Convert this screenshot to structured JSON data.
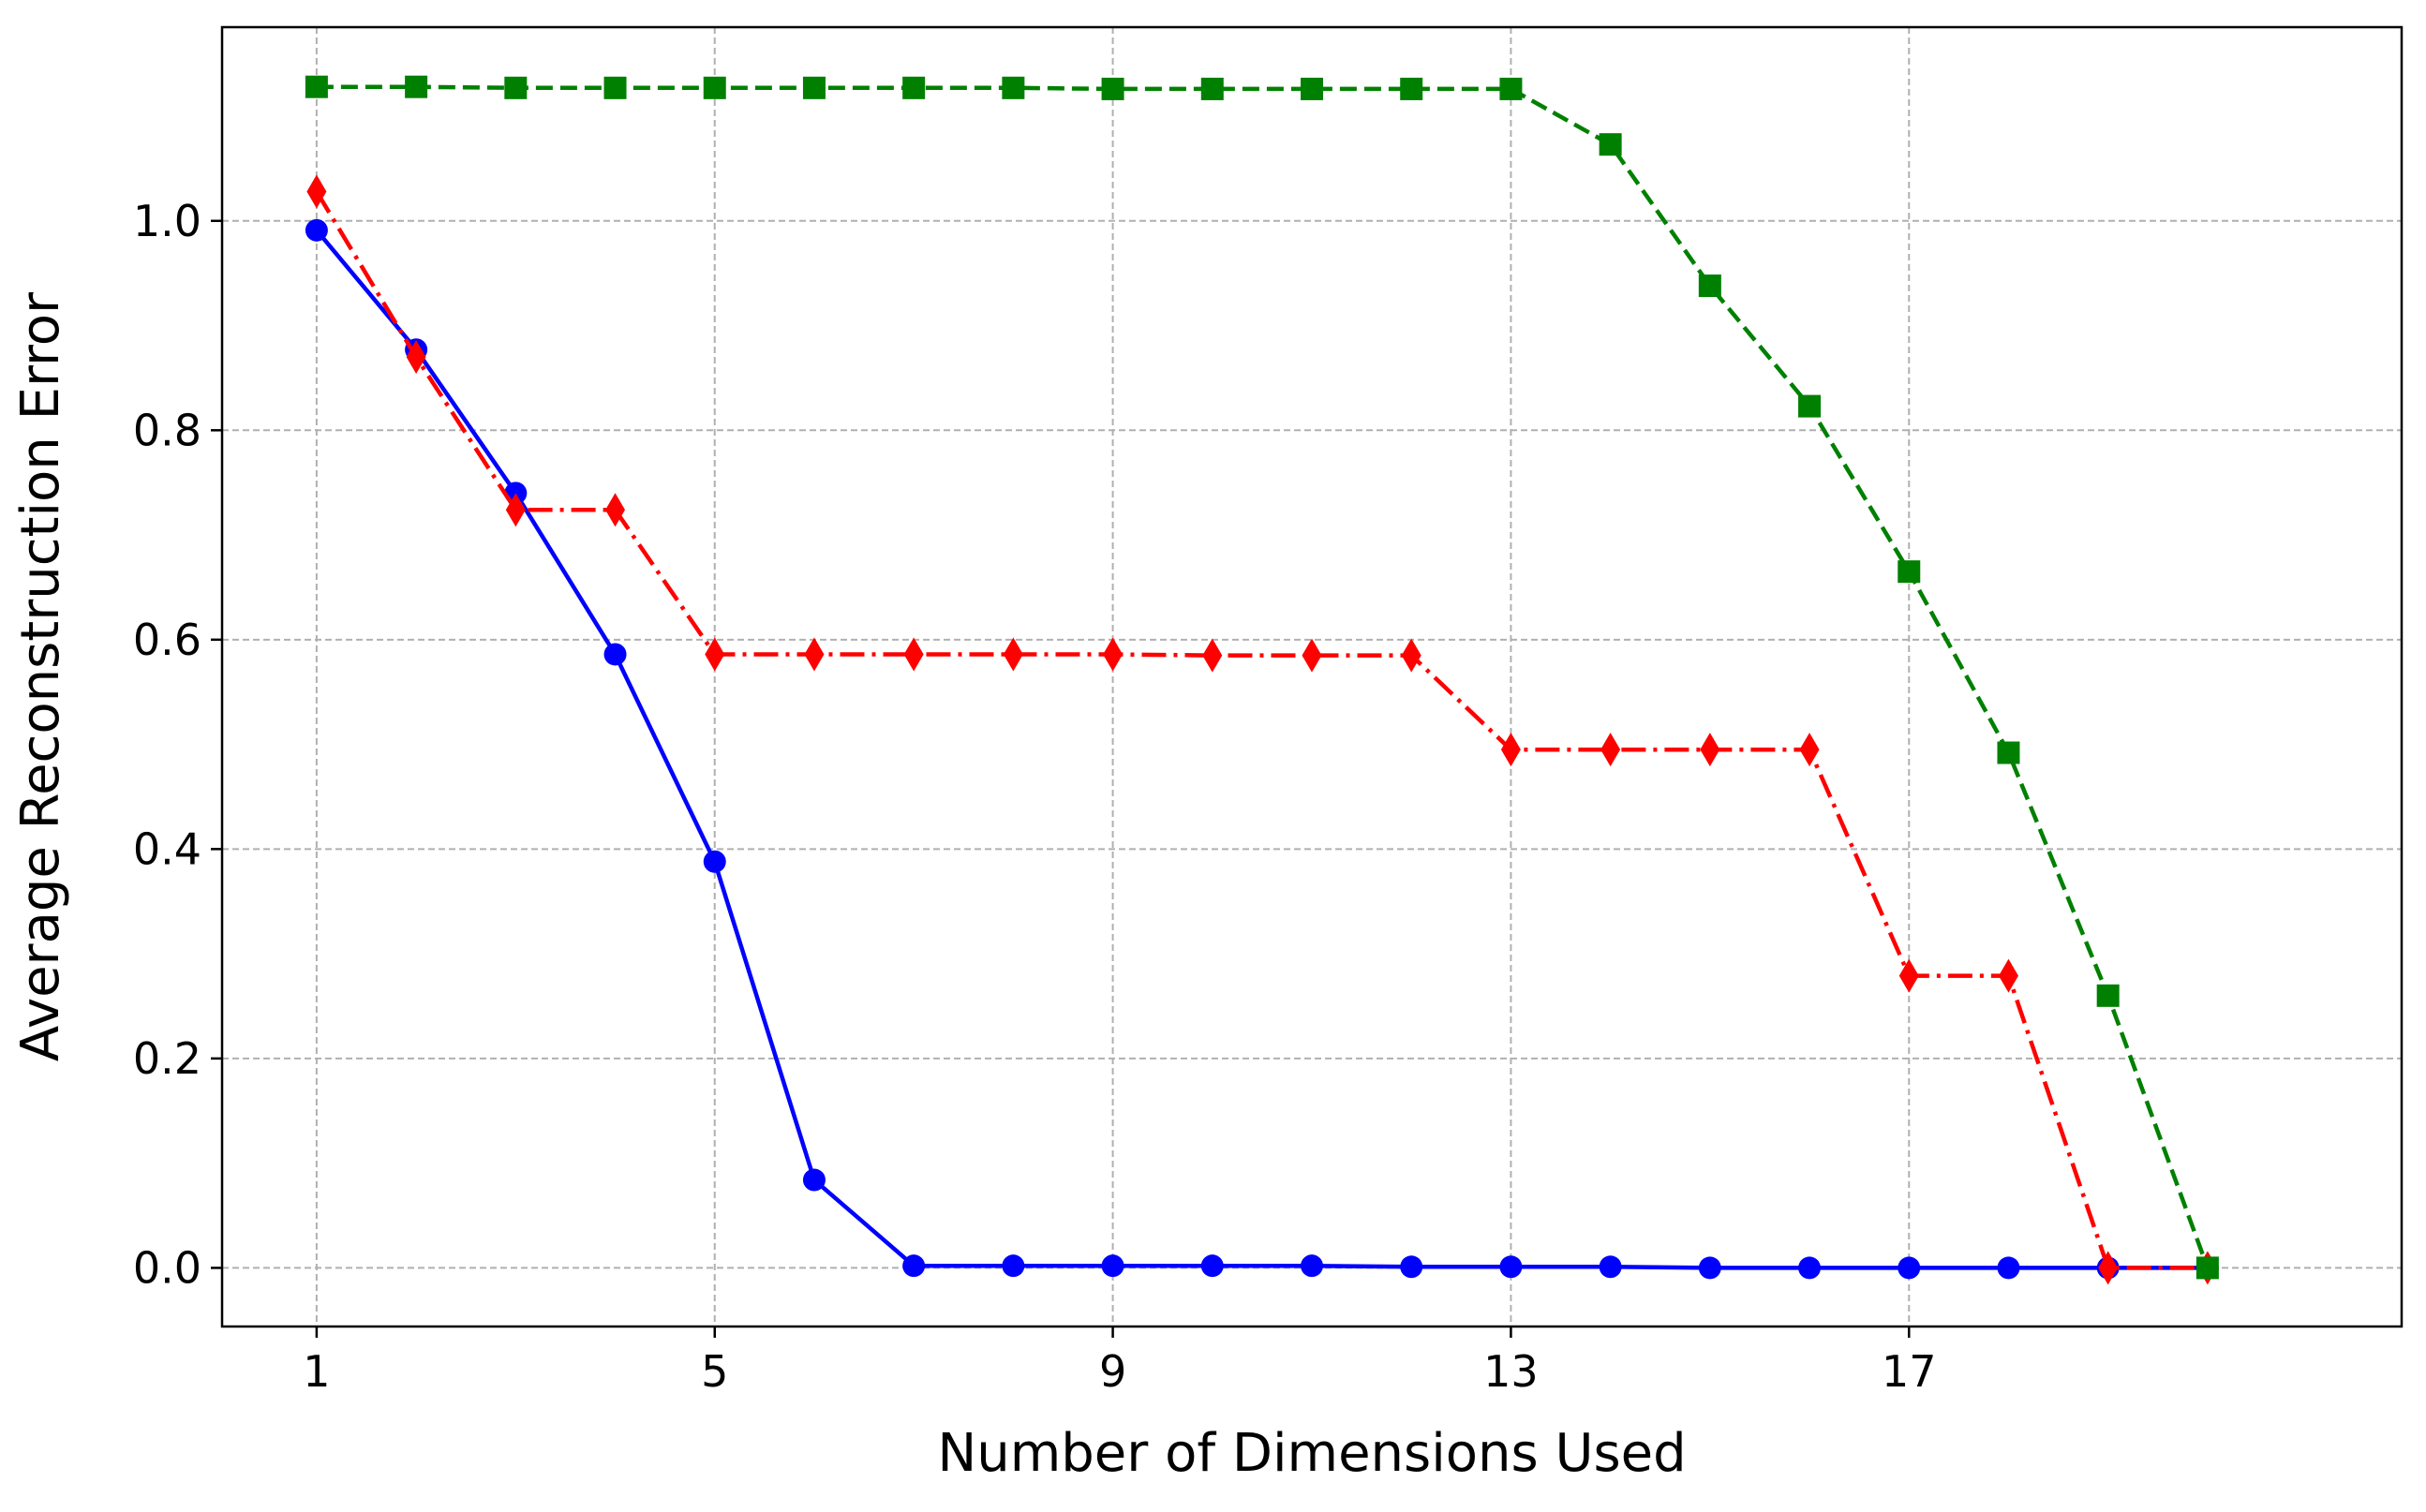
{
  "chart_data": {
    "type": "line",
    "title": "",
    "xlabel": "Number of Dimensions Used",
    "ylabel": "Average Reconstruction Error",
    "xlim": [
      0.05,
      21.95
    ],
    "ylim": [
      -0.056,
      1.185
    ],
    "xticks": [
      1,
      5,
      9,
      13,
      17
    ],
    "yticks": [
      0.0,
      0.2,
      0.4,
      0.6,
      0.8,
      1.0
    ],
    "xtick_labels": [
      "1",
      "5",
      "9",
      "13",
      "17"
    ],
    "ytick_labels": [
      "0.0",
      "0.2",
      "0.4",
      "0.6",
      "0.8",
      "1.0"
    ],
    "grid": true,
    "legend": "none",
    "x": [
      1,
      2,
      3,
      4,
      5,
      6,
      7,
      8,
      9,
      10,
      11,
      12,
      13,
      14,
      15,
      16,
      17,
      18,
      19,
      20
    ],
    "series": [
      {
        "color": "#0000ff",
        "line_style": "solid",
        "marker": "circle",
        "values": [
          0.991,
          0.877,
          0.74,
          0.586,
          0.388,
          0.084,
          0.002,
          0.002,
          0.002,
          0.002,
          0.002,
          0.001,
          0.001,
          0.001,
          0.0,
          0.0,
          0.0,
          0.0,
          0.0,
          0.0
        ]
      },
      {
        "color": "#ff0000",
        "line_style": "dashdot",
        "marker": "diamond",
        "values": [
          1.028,
          0.87,
          0.724,
          0.724,
          0.586,
          0.586,
          0.586,
          0.586,
          0.586,
          0.585,
          0.585,
          0.585,
          0.495,
          0.495,
          0.495,
          0.495,
          0.279,
          0.279,
          0.0,
          0.0
        ]
      },
      {
        "color": "#008000",
        "line_style": "dashed",
        "marker": "square",
        "values": [
          1.128,
          1.128,
          1.127,
          1.127,
          1.127,
          1.127,
          1.127,
          1.127,
          1.126,
          1.126,
          1.126,
          1.126,
          1.126,
          1.073,
          0.938,
          0.823,
          0.665,
          0.492,
          0.26,
          0.0
        ]
      }
    ]
  }
}
